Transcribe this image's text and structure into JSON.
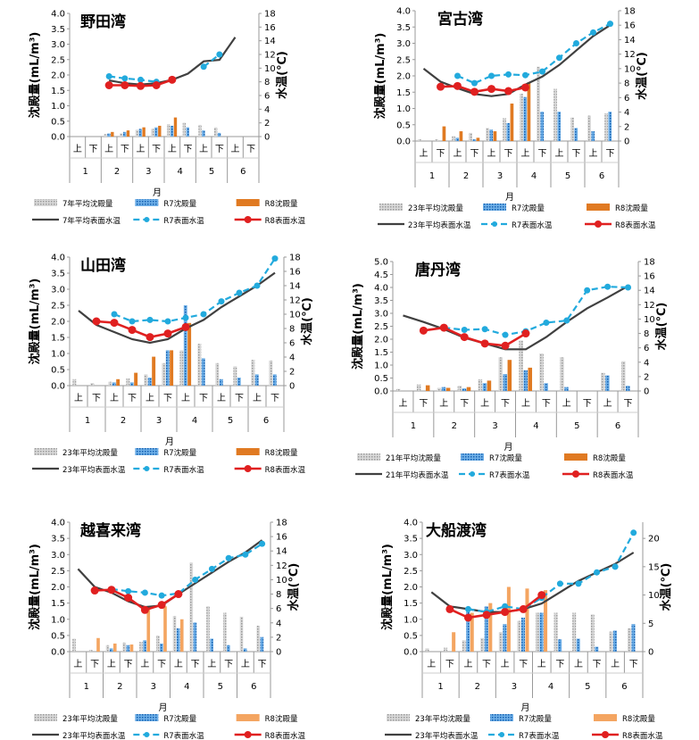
{
  "month_axis_label": "月",
  "xunit_labels": [
    "上",
    "下"
  ],
  "month_labels": [
    "1",
    "2",
    "3",
    "4",
    "5",
    "6"
  ],
  "legend_labels": {
    "avg_bar": "年平均沈殿量",
    "r7_bar": "R7沈殿量",
    "r8_bar": "R8沈殿量",
    "avg_line": "年平均表面水温",
    "r7_line": "R7表面水温",
    "r8_line": "R8表面水温"
  },
  "colors": {
    "avg_bar": "#c8c8c8",
    "r7_bar": "#1f77c8",
    "r8_bar": "#e07a22",
    "r8_bar_light": "#f4a561",
    "avg_line": "#404040",
    "r7_line": "#22aadd",
    "r8_line": "#e02020"
  },
  "chart_data": [
    {
      "type": "bar",
      "title": "野田湾",
      "ylabel_left": "沈殿量(mL/m³)",
      "ylabel_right": "水温(℃)",
      "xlabel": "月",
      "ylim_left": [
        0,
        4.0
      ],
      "ylim_right": [
        0,
        18
      ],
      "yticks_left": [
        "0.0",
        "0.5",
        "1.0",
        "1.5",
        "2.0",
        "2.5",
        "3.0",
        "3.5",
        "4.0"
      ],
      "yticks_right": [
        "0",
        "2",
        "4",
        "6",
        "8",
        "10",
        "12",
        "14",
        "16",
        "18"
      ],
      "legend_prefix": "7",
      "categories": [
        "1上",
        "1下",
        "2上",
        "2下",
        "3上",
        "3下",
        "4上",
        "4下",
        "5上",
        "5下",
        "6上",
        "6下"
      ],
      "series": [
        {
          "name": "7年平均沈殿量",
          "kind": "bar",
          "values": [
            null,
            null,
            0.08,
            0.1,
            0.22,
            0.25,
            0.4,
            0.45,
            0.38,
            0.3,
            null,
            null
          ]
        },
        {
          "name": "R7沈殿量",
          "kind": "bar",
          "values": [
            null,
            null,
            0.1,
            0.15,
            0.25,
            0.3,
            0.35,
            0.3,
            0.2,
            0.12,
            null,
            null
          ]
        },
        {
          "name": "R8沈殿量",
          "kind": "bar",
          "values": [
            null,
            null,
            0.15,
            0.2,
            0.3,
            0.35,
            0.62,
            null,
            null,
            null,
            null,
            null
          ]
        },
        {
          "name": "7年平均表面水温",
          "kind": "line",
          "values": [
            null,
            null,
            8.2,
            7.8,
            7.6,
            7.8,
            8.3,
            9.2,
            11,
            11.2,
            14.5,
            null
          ]
        },
        {
          "name": "R7表面水温",
          "kind": "line",
          "values": [
            null,
            null,
            8.8,
            8.5,
            8.3,
            8.0,
            null,
            null,
            10.2,
            12.0,
            null,
            null
          ]
        },
        {
          "name": "R8表面水温",
          "kind": "line",
          "values": [
            null,
            null,
            7.5,
            7.5,
            7.4,
            7.5,
            8.3,
            null,
            null,
            null,
            null,
            null
          ]
        }
      ]
    },
    {
      "type": "bar",
      "title": "宮古湾",
      "ylabel_left": "沈殿量(mL/m³)",
      "ylabel_right": "水温(℃)",
      "xlabel": "月",
      "ylim_left": [
        0,
        4.0
      ],
      "ylim_right": [
        0,
        18
      ],
      "yticks_left": [
        "0.0",
        "0.5",
        "1.0",
        "1.5",
        "2.0",
        "2.5",
        "3.0",
        "3.5",
        "4.0"
      ],
      "yticks_right": [
        "0",
        "2",
        "4",
        "6",
        "8",
        "10",
        "12",
        "14",
        "16",
        "18"
      ],
      "legend_prefix": "23",
      "categories": [
        "1上",
        "1下",
        "2上",
        "2下",
        "3上",
        "3下",
        "4上",
        "4下",
        "5上",
        "5下",
        "6上",
        "6下"
      ],
      "series": [
        {
          "name": "23年平均沈殿量",
          "kind": "bar",
          "values": [
            0.05,
            0.05,
            0.15,
            0.25,
            0.4,
            0.7,
            1.45,
            2.28,
            1.6,
            0.72,
            0.78,
            0.85
          ]
        },
        {
          "name": "R7沈殿量",
          "kind": "bar",
          "values": [
            null,
            null,
            0.1,
            0.05,
            0.35,
            0.55,
            1.35,
            0.9,
            0.9,
            0.4,
            0.3,
            0.9
          ]
        },
        {
          "name": "R8沈殿量",
          "kind": "bar",
          "values": [
            null,
            0.45,
            0.3,
            0.1,
            0.3,
            1.15,
            1.8,
            null,
            null,
            null,
            null,
            null
          ]
        },
        {
          "name": "23年平均表面水温",
          "kind": "line",
          "values": [
            10,
            8.2,
            7.3,
            6.5,
            6.2,
            6.5,
            7.8,
            8.9,
            10.5,
            12.5,
            14.5,
            16
          ]
        },
        {
          "name": "R7表面水温",
          "kind": "line",
          "values": [
            null,
            null,
            9.0,
            8.0,
            9.0,
            9.2,
            9.1,
            9.6,
            11.5,
            13.5,
            15.0,
            16.2
          ]
        },
        {
          "name": "R8表面水温",
          "kind": "line",
          "values": [
            null,
            7.5,
            7.6,
            6.8,
            7.2,
            6.9,
            7.4,
            null,
            null,
            null,
            null,
            null
          ]
        }
      ]
    },
    {
      "type": "bar",
      "title": "山田湾",
      "ylabel_left": "沈殿量(mL/m³)",
      "ylabel_right": "水温(℃)",
      "xlabel": "月",
      "ylim_left": [
        0,
        4.0
      ],
      "ylim_right": [
        0,
        18
      ],
      "yticks_left": [
        "0.0",
        "0.5",
        "1.0",
        "1.5",
        "2.0",
        "2.5",
        "3.0",
        "3.5",
        "4.0"
      ],
      "yticks_right": [
        "0",
        "2",
        "4",
        "6",
        "8",
        "10",
        "12",
        "14",
        "16",
        "18"
      ],
      "legend_prefix": "23",
      "categories": [
        "1上",
        "1下",
        "2上",
        "2下",
        "3上",
        "3下",
        "4上",
        "4下",
        "5上",
        "5下",
        "6上",
        "6下"
      ],
      "series": [
        {
          "name": "23年平均沈殿量",
          "kind": "bar",
          "values": [
            0.2,
            0.08,
            0.12,
            0.22,
            0.35,
            0.7,
            1.1,
            1.3,
            0.7,
            0.6,
            0.8,
            0.78
          ]
        },
        {
          "name": "R7沈殿量",
          "kind": "bar",
          "values": [
            null,
            null,
            0.1,
            0.1,
            0.25,
            1.1,
            2.5,
            0.85,
            0.2,
            0.25,
            0.35,
            0.35
          ]
        },
        {
          "name": "R8沈殿量",
          "kind": "bar",
          "values": [
            null,
            null,
            0.2,
            0.4,
            0.9,
            1.1,
            1.95,
            null,
            null,
            null,
            null,
            null
          ]
        },
        {
          "name": "23年平均表面水温",
          "kind": "line",
          "values": [
            10.5,
            8.5,
            7.5,
            6.5,
            6.0,
            6.5,
            8.0,
            9.2,
            11,
            12.5,
            14.0,
            15.8
          ]
        },
        {
          "name": "R7表面水温",
          "kind": "line",
          "values": [
            null,
            null,
            10.0,
            9.0,
            9.2,
            9.0,
            9.5,
            10.0,
            11.8,
            13.0,
            14.0,
            17.8
          ]
        },
        {
          "name": "R8表面水温",
          "kind": "line",
          "values": [
            null,
            9.0,
            8.8,
            7.8,
            6.8,
            7.3,
            8.2,
            null,
            null,
            null,
            null,
            null
          ]
        }
      ]
    },
    {
      "type": "bar",
      "title": "唐丹湾",
      "ylabel_left": "沈殿量(mL/m³)",
      "ylabel_right": "水温(℃)",
      "xlabel": "月",
      "ylim_left": [
        0,
        5.0
      ],
      "ylim_right": [
        0,
        18
      ],
      "yticks_left": [
        "0.0",
        "0.5",
        "1.0",
        "1.5",
        "2.0",
        "2.5",
        "3.0",
        "3.5",
        "4.0",
        "4.5",
        "5.0"
      ],
      "yticks_right": [
        "0",
        "2",
        "4",
        "6",
        "8",
        "10",
        "12",
        "14",
        "16",
        "18"
      ],
      "legend_prefix": "21",
      "categories": [
        "1上",
        "1下",
        "2上",
        "2下",
        "3上",
        "3下",
        "4上",
        "4下",
        "5上",
        "5下",
        "6上",
        "6下"
      ],
      "series": [
        {
          "name": "21年平均沈殿量",
          "kind": "bar",
          "values": [
            0.08,
            0.25,
            0.12,
            0.2,
            0.45,
            1.3,
            1.95,
            1.45,
            1.3,
            null,
            0.7,
            1.15
          ]
        },
        {
          "name": "R7沈殿量",
          "kind": "bar",
          "values": [
            null,
            null,
            0.15,
            0.1,
            0.3,
            0.65,
            0.8,
            0.3,
            0.15,
            null,
            0.6,
            0.2
          ]
        },
        {
          "name": "R8沈殿量",
          "kind": "bar",
          "values": [
            null,
            0.22,
            0.12,
            0.15,
            0.4,
            1.2,
            0.9,
            null,
            null,
            null,
            null,
            null
          ]
        },
        {
          "name": "21年平均表面水温",
          "kind": "line",
          "values": [
            10.5,
            9.6,
            8.6,
            7.4,
            6.6,
            5.8,
            5.8,
            7.5,
            9.6,
            11.5,
            13.0,
            14.6
          ]
        },
        {
          "name": "R7表面水温",
          "kind": "line",
          "values": [
            null,
            null,
            8.8,
            8.5,
            8.6,
            7.8,
            8.3,
            9.5,
            9.8,
            14.0,
            14.5,
            14.4
          ]
        },
        {
          "name": "R8表面水温",
          "kind": "line",
          "values": [
            null,
            8.4,
            8.8,
            7.5,
            6.6,
            6.3,
            8.0,
            null,
            null,
            null,
            null,
            null
          ]
        }
      ]
    },
    {
      "type": "bar",
      "title": "越喜来湾",
      "ylabel_left": "沈殿量(mL/m³)",
      "ylabel_right": "水温(℃)",
      "xlabel": "月",
      "ylim_left": [
        0,
        4.0
      ],
      "ylim_right": [
        0,
        18
      ],
      "yticks_left": [
        "0.0",
        "0.5",
        "1.0",
        "1.5",
        "2.0",
        "2.5",
        "3.0",
        "3.5",
        "4.0"
      ],
      "yticks_right": [
        "0",
        "2",
        "4",
        "6",
        "8",
        "10",
        "12",
        "14",
        "16",
        "18"
      ],
      "legend_prefix": "23",
      "categories": [
        "1上",
        "1下",
        "2上",
        "2下",
        "3上",
        "3下",
        "4上",
        "4下",
        "5上",
        "5下",
        "6上",
        "6下"
      ],
      "series": [
        {
          "name": "23年平均沈殿量",
          "kind": "bar",
          "values": [
            0.4,
            0.05,
            0.2,
            0.28,
            0.3,
            0.5,
            1.1,
            2.75,
            1.4,
            1.2,
            1.08,
            0.8
          ]
        },
        {
          "name": "R7沈殿量",
          "kind": "bar",
          "values": [
            null,
            null,
            0.1,
            0.2,
            0.35,
            0.25,
            0.72,
            0.9,
            0.4,
            0.2,
            0.1,
            0.45
          ]
        },
        {
          "name": "R8沈殿量",
          "kind": "bar",
          "values": [
            null,
            0.42,
            0.25,
            0.22,
            1.35,
            1.4,
            1.0,
            null,
            null,
            null,
            null,
            null
          ]
        },
        {
          "name": "23年平均表面水温",
          "kind": "line",
          "values": [
            11.5,
            9.0,
            8.2,
            7.0,
            6.2,
            6.4,
            8.0,
            9.5,
            11.0,
            12.5,
            13.8,
            15.5
          ]
        },
        {
          "name": "R7表面水温",
          "kind": "line",
          "values": [
            null,
            null,
            8.7,
            8.4,
            8.2,
            7.8,
            8.1,
            10.0,
            11.5,
            13.0,
            13.5,
            15.0
          ]
        },
        {
          "name": "R8表面水温",
          "kind": "line",
          "values": [
            null,
            8.5,
            8.6,
            7.5,
            5.8,
            6.5,
            8.0,
            null,
            null,
            null,
            null,
            null
          ]
        }
      ]
    },
    {
      "type": "bar",
      "title": "大船渡湾",
      "ylabel_left": "沈殿量(mL/m³)",
      "ylabel_right": "水温(℃)",
      "xlabel": "月",
      "ylim_left": [
        0,
        4.0
      ],
      "ylim_right": [
        0,
        22.86
      ],
      "yticks_left": [
        "0.0",
        "0.5",
        "1.0",
        "1.5",
        "2.0",
        "2.5",
        "3.0",
        "3.5",
        "4.0"
      ],
      "yticks_right": [
        "0",
        "5",
        "10",
        "15",
        "20"
      ],
      "yticks_right_values": [
        0,
        5,
        10,
        15,
        20
      ],
      "legend_prefix": "23",
      "categories": [
        "1上",
        "1下",
        "2上",
        "2下",
        "3上",
        "3下",
        "4上",
        "4下",
        "5上",
        "5下",
        "6上",
        "6下"
      ],
      "series": [
        {
          "name": "23年平均沈殿量",
          "kind": "bar",
          "values": [
            0.1,
            0.12,
            0.35,
            0.42,
            0.6,
            0.95,
            1.2,
            1.2,
            1.2,
            1.15,
            0.62,
            0.72
          ]
        },
        {
          "name": "R7沈殿量",
          "kind": "bar",
          "values": [
            null,
            null,
            1.3,
            1.4,
            0.85,
            1.05,
            1.2,
            0.38,
            0.4,
            0.15,
            0.65,
            0.85
          ]
        },
        {
          "name": "R8沈殿量",
          "kind": "bar",
          "values": [
            null,
            0.6,
            1.2,
            1.5,
            2.0,
            1.95,
            1.9,
            null,
            null,
            null,
            null,
            null
          ]
        },
        {
          "name": "23年平均表面水温",
          "kind": "line",
          "values": [
            10.5,
            8.0,
            7.5,
            7.0,
            7.0,
            7.5,
            8.5,
            10.5,
            12.5,
            14.0,
            15.5,
            17.5
          ]
        },
        {
          "name": "R7表面水温",
          "kind": "line",
          "values": [
            null,
            null,
            7.5,
            7.0,
            8.0,
            7.5,
            9.5,
            12.0,
            12.0,
            14.0,
            15.0,
            21.0
          ]
        },
        {
          "name": "R8表面水温",
          "kind": "line",
          "values": [
            null,
            7.5,
            6.0,
            6.5,
            7.0,
            7.5,
            10.0,
            null,
            null,
            null,
            null,
            null
          ]
        }
      ]
    }
  ]
}
